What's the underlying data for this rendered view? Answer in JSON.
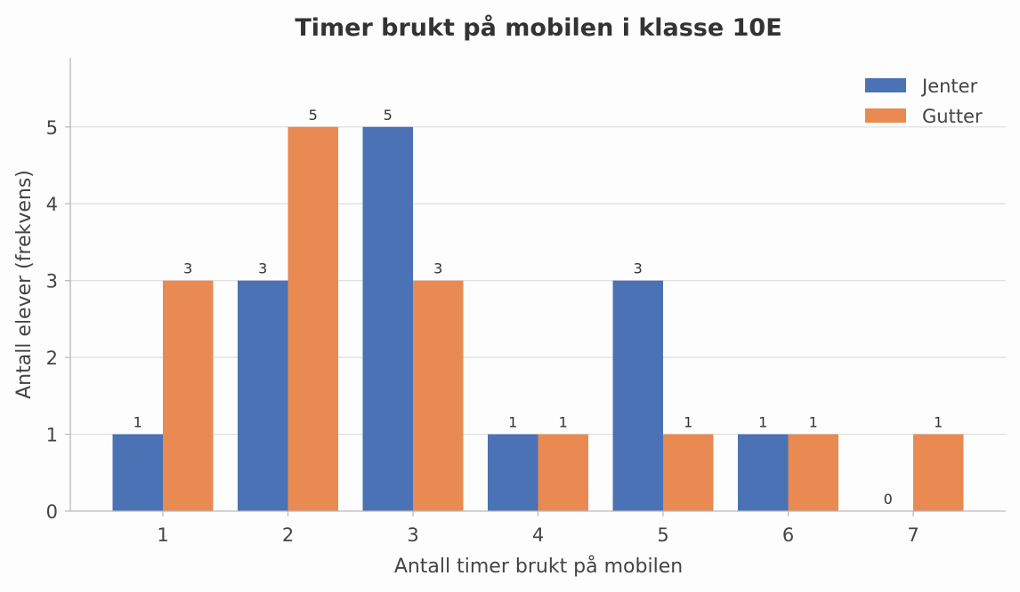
{
  "chart_data": {
    "type": "bar",
    "title": "Timer brukt på mobilen i klasse 10E",
    "xlabel": "Antall timer brukt på mobilen",
    "ylabel": "Antall elever (frekvens)",
    "categories": [
      "1",
      "2",
      "3",
      "4",
      "5",
      "6",
      "7"
    ],
    "series": [
      {
        "name": "Jenter",
        "values": [
          1,
          3,
          5,
          1,
          3,
          1,
          0
        ],
        "color": "#4a72b4"
      },
      {
        "name": "Gutter",
        "values": [
          3,
          5,
          3,
          1,
          1,
          1,
          1
        ],
        "color": "#e88a52"
      }
    ],
    "ylim": [
      0,
      5.9
    ],
    "yticks": [
      0,
      1,
      2,
      3,
      4,
      5
    ],
    "grid": "horizontal",
    "legend": "top-right"
  }
}
